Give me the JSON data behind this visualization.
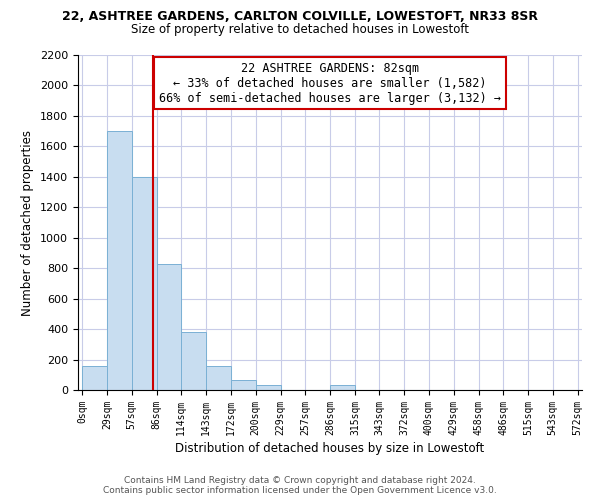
{
  "title": "22, ASHTREE GARDENS, CARLTON COLVILLE, LOWESTOFT, NR33 8SR",
  "subtitle": "Size of property relative to detached houses in Lowestoft",
  "xlabel": "Distribution of detached houses by size in Lowestoft",
  "ylabel": "Number of detached properties",
  "bar_color": "#c8ddf0",
  "bar_edge_color": "#7ab0d4",
  "bins": [
    0,
    29,
    57,
    86,
    114,
    143,
    172,
    200,
    229,
    257,
    286,
    315,
    343,
    372,
    400,
    429,
    458,
    486,
    515,
    543,
    572
  ],
  "bin_labels": [
    "0sqm",
    "29sqm",
    "57sqm",
    "86sqm",
    "114sqm",
    "143sqm",
    "172sqm",
    "200sqm",
    "229sqm",
    "257sqm",
    "286sqm",
    "315sqm",
    "343sqm",
    "372sqm",
    "400sqm",
    "429sqm",
    "458sqm",
    "486sqm",
    "515sqm",
    "543sqm",
    "572sqm"
  ],
  "counts": [
    160,
    1700,
    1400,
    830,
    380,
    160,
    65,
    30,
    0,
    0,
    30,
    0,
    0,
    0,
    0,
    0,
    0,
    0,
    0,
    0
  ],
  "ylim": [
    0,
    2200
  ],
  "yticks": [
    0,
    200,
    400,
    600,
    800,
    1000,
    1200,
    1400,
    1600,
    1800,
    2000,
    2200
  ],
  "annotation_title": "22 ASHTREE GARDENS: 82sqm",
  "annotation_line1": "← 33% of detached houses are smaller (1,582)",
  "annotation_line2": "66% of semi-detached houses are larger (3,132) →",
  "annotation_box_color": "#ffffff",
  "annotation_border_color": "#cc0000",
  "vline_color": "#cc0000",
  "footer1": "Contains HM Land Registry data © Crown copyright and database right 2024.",
  "footer2": "Contains public sector information licensed under the Open Government Licence v3.0.",
  "background_color": "#ffffff",
  "grid_color": "#c8cce8",
  "prop_sqm": 82,
  "prop_bin_lo": 57,
  "prop_bin_hi": 86,
  "prop_bin_idx_lo": 2
}
